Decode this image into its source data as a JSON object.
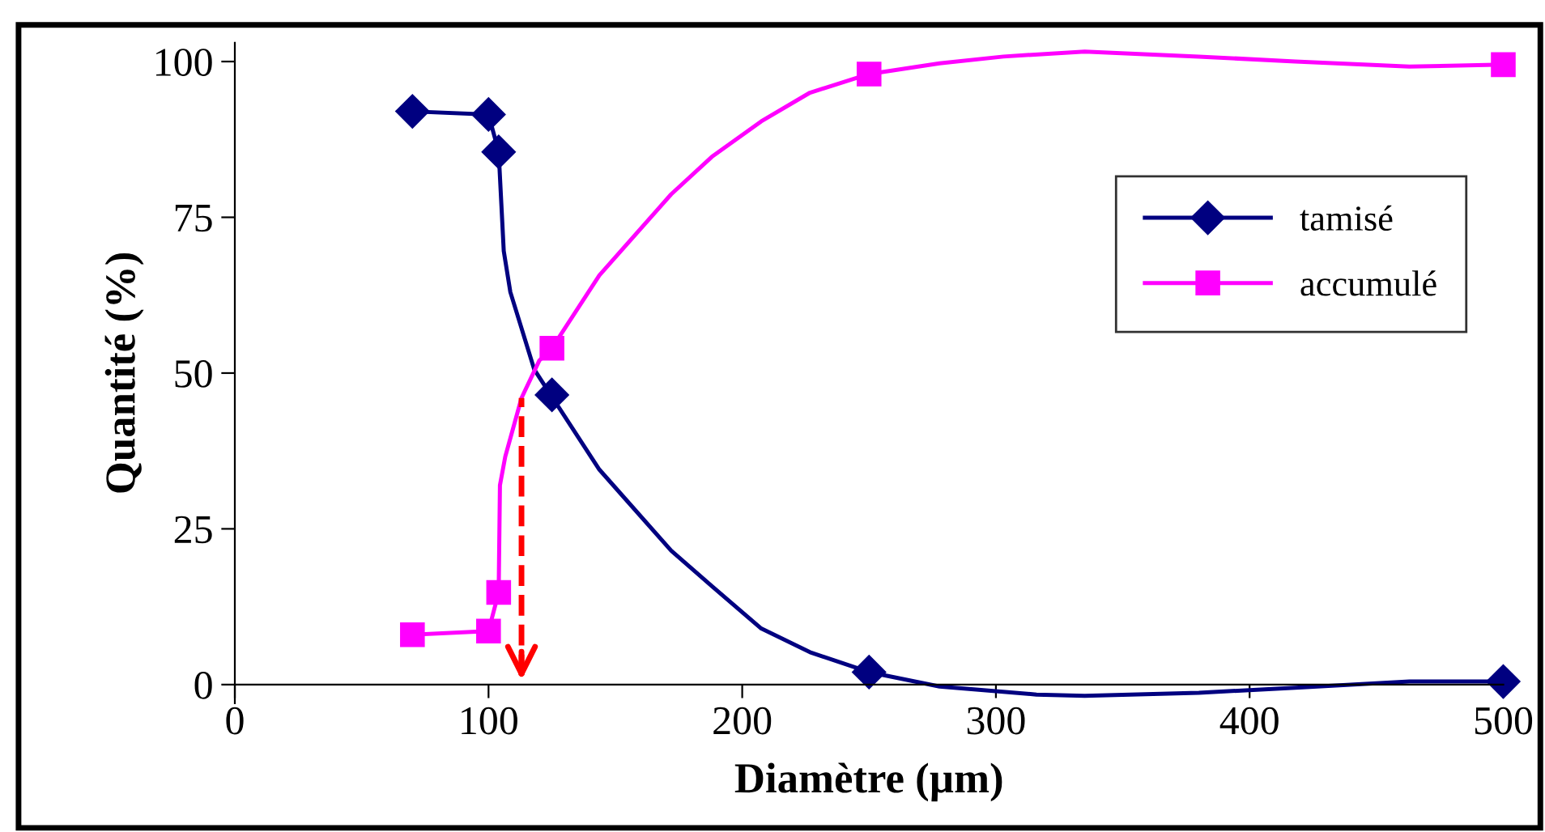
{
  "chart_data": {
    "type": "line",
    "xlabel": "Diamètre (µm)",
    "ylabel": "Quantité (%)",
    "series": [
      {
        "name": "tamisé",
        "color": "#000080",
        "x": [
          70,
          100,
          104,
          106,
          108.6,
          118,
          124.5,
          143.7,
          172,
          188,
          207.5,
          226.7,
          250,
          277.8,
          316,
          335,
          380,
          418,
          463,
          500
        ],
        "values": [
          92,
          91.5,
          85.5,
          69.6,
          63,
          50.6,
          46.5,
          34.5,
          21.5,
          15.8,
          9,
          5.2,
          2,
          -0.3,
          -1.6,
          -1.8,
          -1.3,
          -0.5,
          0.5,
          0.5
        ]
      },
      {
        "name": "accumulé",
        "color": "#ff00ff",
        "x": [
          70,
          100,
          104,
          104.5,
          106.6,
          113,
          120,
          125,
          143.7,
          172,
          188,
          207.5,
          226.7,
          250,
          277.8,
          303,
          335,
          380,
          418,
          463,
          500
        ],
        "values": [
          8,
          8.6,
          14.8,
          32,
          36.6,
          46,
          52,
          54,
          65.7,
          78.7,
          84.7,
          90.4,
          95,
          98,
          99.7,
          100.8,
          101.6,
          100.8,
          100,
          99.2,
          99.5
        ]
      },
      {
        "type": "scatter",
        "color": "#000080",
        "marker": "diamond",
        "x": [
          70,
          100,
          104,
          125,
          250,
          500
        ],
        "values": [
          92,
          91.5,
          85.5,
          46.5,
          2,
          0.5
        ]
      },
      {
        "type": "scatter",
        "color": "#ff00ff",
        "marker": "square",
        "x": [
          70,
          100,
          104,
          125,
          250,
          500
        ],
        "values": [
          8,
          8.6,
          14.8,
          54,
          98,
          99.5
        ]
      }
    ],
    "xlim": [
      0,
      500
    ],
    "xticks": [
      0,
      100,
      200,
      300,
      400,
      500
    ],
    "ylim": [
      -3,
      103
    ],
    "yticks": [
      0,
      25,
      50,
      75,
      100
    ],
    "ref_lines": [
      {
        "axis": "x",
        "value": 113,
        "color": "#ff0000",
        "line_style": "dashed"
      }
    ],
    "grid": false,
    "legend": "right"
  }
}
